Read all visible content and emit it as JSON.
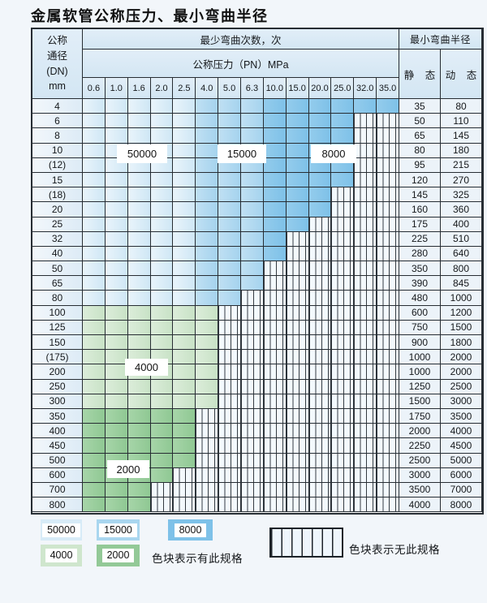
{
  "title": "金属软管公称压力、最小弯曲半径",
  "table": {
    "header": {
      "dn_label_lines": [
        "公称",
        "通径",
        "(DN)",
        "mm"
      ],
      "cycles_label": "最少弯曲次数，次",
      "pressure_label": "公称压力（PN）MPa",
      "radius_label": "最小弯曲半径",
      "static_label": "静 态",
      "dynamic_label": "动 态"
    },
    "pressure_columns": [
      "0.6",
      "1.0",
      "1.6",
      "2.0",
      "2.5",
      "4.0",
      "5.0",
      "6.3",
      "10.0",
      "15.0",
      "20.0",
      "25.0",
      "32.0",
      "35.0"
    ],
    "cycle_bands": [
      {
        "cycles": "50000",
        "pressure_cols": [
          "0.6",
          "1.0",
          "1.6",
          "2.0",
          "2.5"
        ]
      },
      {
        "cycles": "15000",
        "pressure_cols": [
          "4.0",
          "5.0",
          "6.3"
        ]
      },
      {
        "cycles": "8000",
        "pressure_cols": [
          "10.0",
          "15.0",
          "20.0",
          "25.0",
          "32.0",
          "35.0"
        ]
      }
    ],
    "rows": [
      {
        "dn": "4",
        "type": "blue",
        "colored_cols": 14,
        "static": "35",
        "dynamic": "80"
      },
      {
        "dn": "6",
        "type": "blue",
        "colored_cols": 12,
        "static": "50",
        "dynamic": "110"
      },
      {
        "dn": "8",
        "type": "blue",
        "colored_cols": 12,
        "static": "65",
        "dynamic": "145"
      },
      {
        "dn": "10",
        "type": "blue",
        "colored_cols": 12,
        "static": "80",
        "dynamic": "180"
      },
      {
        "dn": "(12)",
        "type": "blue",
        "colored_cols": 12,
        "static": "95",
        "dynamic": "215"
      },
      {
        "dn": "15",
        "type": "blue",
        "colored_cols": 12,
        "static": "120",
        "dynamic": "270"
      },
      {
        "dn": "(18)",
        "type": "blue",
        "colored_cols": 11,
        "static": "145",
        "dynamic": "325"
      },
      {
        "dn": "20",
        "type": "blue",
        "colored_cols": 11,
        "static": "160",
        "dynamic": "360"
      },
      {
        "dn": "25",
        "type": "blue",
        "colored_cols": 10,
        "static": "175",
        "dynamic": "400"
      },
      {
        "dn": "32",
        "type": "blue",
        "colored_cols": 9,
        "static": "225",
        "dynamic": "510"
      },
      {
        "dn": "40",
        "type": "blue",
        "colored_cols": 9,
        "static": "280",
        "dynamic": "640"
      },
      {
        "dn": "50",
        "type": "blue",
        "colored_cols": 8,
        "static": "350",
        "dynamic": "800"
      },
      {
        "dn": "65",
        "type": "blue",
        "colored_cols": 8,
        "static": "390",
        "dynamic": "845"
      },
      {
        "dn": "80",
        "type": "blue",
        "colored_cols": 7,
        "static": "480",
        "dynamic": "1000"
      },
      {
        "dn": "100",
        "type": "green",
        "shade": "4000",
        "colored_cols": 6,
        "static": "600",
        "dynamic": "1200"
      },
      {
        "dn": "125",
        "type": "green",
        "shade": "4000",
        "colored_cols": 6,
        "static": "750",
        "dynamic": "1500"
      },
      {
        "dn": "150",
        "type": "green",
        "shade": "4000",
        "colored_cols": 6,
        "static": "900",
        "dynamic": "1800"
      },
      {
        "dn": "(175)",
        "type": "green",
        "shade": "4000",
        "colored_cols": 6,
        "static": "1000",
        "dynamic": "2000"
      },
      {
        "dn": "200",
        "type": "green",
        "shade": "4000",
        "colored_cols": 6,
        "static": "1000",
        "dynamic": "2000"
      },
      {
        "dn": "250",
        "type": "green",
        "shade": "4000",
        "colored_cols": 6,
        "static": "1250",
        "dynamic": "2500"
      },
      {
        "dn": "300",
        "type": "green",
        "shade": "4000",
        "colored_cols": 6,
        "static": "1500",
        "dynamic": "3000"
      },
      {
        "dn": "350",
        "type": "green",
        "shade": "2000",
        "colored_cols": 5,
        "static": "1750",
        "dynamic": "3500"
      },
      {
        "dn": "400",
        "type": "green",
        "shade": "2000",
        "colored_cols": 5,
        "static": "2000",
        "dynamic": "4000"
      },
      {
        "dn": "450",
        "type": "green",
        "shade": "2000",
        "colored_cols": 5,
        "static": "2250",
        "dynamic": "4500"
      },
      {
        "dn": "500",
        "type": "green",
        "shade": "2000",
        "colored_cols": 5,
        "static": "2500",
        "dynamic": "5000"
      },
      {
        "dn": "600",
        "type": "green",
        "shade": "2000",
        "colored_cols": 4,
        "static": "3000",
        "dynamic": "6000"
      },
      {
        "dn": "700",
        "type": "green",
        "shade": "2000",
        "colored_cols": 3,
        "static": "3500",
        "dynamic": "7000"
      },
      {
        "dn": "800",
        "type": "green",
        "shade": "2000",
        "colored_cols": 3,
        "static": "4000",
        "dynamic": "8000"
      }
    ]
  },
  "overlays": [
    {
      "label": "50000"
    },
    {
      "label": "15000"
    },
    {
      "label": "8000"
    },
    {
      "label": "4000"
    },
    {
      "label": "2000"
    }
  ],
  "legend": {
    "swatches": [
      {
        "label": "50000",
        "color": "#d7ebf7"
      },
      {
        "label": "15000",
        "color": "#a9d6ef"
      },
      {
        "label": "8000",
        "color": "#7ec1e8"
      },
      {
        "label": "4000",
        "color": "#cfe6cd"
      },
      {
        "label": "2000",
        "color": "#93c997"
      }
    ],
    "have_caption": "色块表示有此规格",
    "none_caption": "色块表示无此规格"
  },
  "colors": {
    "cycles_50000": "#d7ebf7",
    "cycles_15000": "#a9d6ef",
    "cycles_8000": "#7ec1e8",
    "cycles_4000": "#cfe6cd",
    "cycles_2000": "#93c997",
    "unavailable_stripe_bg": "#f3f9fd",
    "grid_line": "#272d33"
  }
}
